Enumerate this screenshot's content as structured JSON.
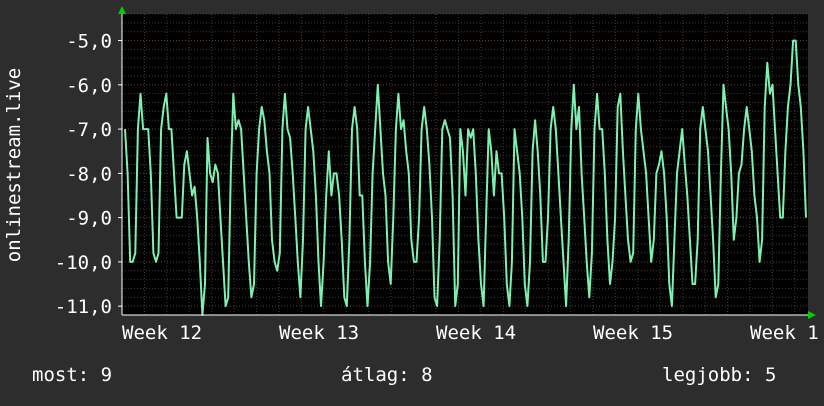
{
  "chart_data": {
    "type": "line",
    "ylabel": "onlinestream.live",
    "ylim": [
      -11.2,
      -4.4
    ],
    "y_ticks": [
      "-5,0",
      "-6,0",
      "-7,0",
      "-8,0",
      "-9,0",
      "-10,0",
      "-11,0"
    ],
    "y_tick_values": [
      -5,
      -6,
      -7,
      -8,
      -9,
      -10,
      -11
    ],
    "x_ticks": [
      "Week 12",
      "Week 13",
      "Week 14",
      "Week 15",
      "Week 1"
    ],
    "grid": true,
    "colors": {
      "background": "#2d2d2d",
      "plot": "#000000",
      "line": "#7ff0b0",
      "grid_major": "#5a3a3a",
      "grid_minor": "#3a3a3a",
      "arrow": "#00cc00"
    },
    "series": [
      {
        "values": [
          -7.0,
          -8.0,
          -10.0,
          -10.0,
          -9.8,
          -7.0,
          -6.2,
          -7.0,
          -7.0,
          -7.0,
          -8.0,
          -9.8,
          -10.0,
          -9.8,
          -7.0,
          -6.5,
          -6.2,
          -7.0,
          -7.0,
          -8.0,
          -9.0,
          -9.0,
          -9.0,
          -7.8,
          -7.5,
          -8.0,
          -8.5,
          -8.3,
          -9.0,
          -10.0,
          -11.2,
          -10.5,
          -7.2,
          -8.0,
          -8.2,
          -7.8,
          -8.0,
          -9.0,
          -10.0,
          -11.0,
          -10.8,
          -8.0,
          -6.2,
          -7.0,
          -6.8,
          -7.0,
          -8.0,
          -9.0,
          -10.0,
          -10.8,
          -10.5,
          -8.0,
          -7.0,
          -6.5,
          -6.8,
          -7.5,
          -8.0,
          -9.5,
          -10.0,
          -10.2,
          -9.8,
          -7.0,
          -6.2,
          -7.0,
          -7.2,
          -8.0,
          -9.0,
          -10.0,
          -10.8,
          -9.5,
          -7.0,
          -6.5,
          -7.0,
          -7.5,
          -8.5,
          -10.0,
          -11.0,
          -10.0,
          -8.5,
          -7.5,
          -8.5,
          -8.0,
          -8.0,
          -8.5,
          -9.5,
          -10.8,
          -11.0,
          -9.5,
          -7.0,
          -6.5,
          -7.0,
          -8.5,
          -8.5,
          -10.0,
          -11.0,
          -10.0,
          -8.0,
          -7.0,
          -6.0,
          -7.0,
          -8.0,
          -8.5,
          -10.0,
          -10.5,
          -9.0,
          -7.0,
          -6.2,
          -7.0,
          -6.8,
          -7.5,
          -8.0,
          -9.5,
          -10.0,
          -10.0,
          -9.0,
          -7.0,
          -6.5,
          -7.0,
          -7.8,
          -9.0,
          -10.8,
          -11.0,
          -9.5,
          -7.0,
          -6.8,
          -7.0,
          -7.2,
          -8.5,
          -11.0,
          -10.5,
          -7.0,
          -7.5,
          -8.5,
          -7.0,
          -7.2,
          -7.0,
          -8.0,
          -9.5,
          -10.5,
          -11.0,
          -9.0,
          -7.0,
          -7.5,
          -8.5,
          -7.5,
          -8.0,
          -8.0,
          -9.0,
          -10.5,
          -11.0,
          -10.0,
          -7.0,
          -7.5,
          -8.0,
          -9.0,
          -10.5,
          -11.0,
          -10.0,
          -7.5,
          -6.8,
          -7.5,
          -8.5,
          -10.0,
          -10.0,
          -9.0,
          -7.0,
          -6.5,
          -7.0,
          -8.0,
          -9.0,
          -10.0,
          -11.0,
          -9.5,
          -7.0,
          -6.0,
          -7.0,
          -6.5,
          -8.0,
          -9.0,
          -10.0,
          -10.8,
          -9.8,
          -7.0,
          -6.2,
          -7.0,
          -7.0,
          -8.0,
          -9.5,
          -10.5,
          -10.0,
          -9.0,
          -6.5,
          -6.2,
          -7.5,
          -8.5,
          -9.5,
          -10.0,
          -9.8,
          -7.0,
          -6.2,
          -7.0,
          -7.5,
          -8.0,
          -9.0,
          -10.0,
          -9.5,
          -8.0,
          -7.8,
          -7.5,
          -8.0,
          -9.0,
          -10.5,
          -11.0,
          -9.5,
          -8.0,
          -7.5,
          -7.0,
          -7.8,
          -8.5,
          -9.5,
          -10.5,
          -10.5,
          -9.5,
          -7.0,
          -6.5,
          -7.0,
          -7.5,
          -8.5,
          -9.5,
          -10.8,
          -10.5,
          -8.0,
          -6.0,
          -6.5,
          -7.0,
          -8.0,
          -9.5,
          -9.0,
          -8.0,
          -7.8,
          -7.0,
          -6.5,
          -7.0,
          -7.5,
          -8.5,
          -9.0,
          -10.0,
          -9.5,
          -6.5,
          -5.5,
          -6.2,
          -6.0,
          -7.0,
          -8.0,
          -9.0,
          -9.0,
          -7.5,
          -6.5,
          -6.0,
          -5.0,
          -5.0,
          -6.0,
          -6.5,
          -7.5,
          -9.0
        ]
      }
    ]
  },
  "legend": {
    "now_label": "most:",
    "now_value": "9",
    "avg_label": "átlag:",
    "avg_value": "8",
    "best_label": "legjobb:",
    "best_value": "5"
  }
}
